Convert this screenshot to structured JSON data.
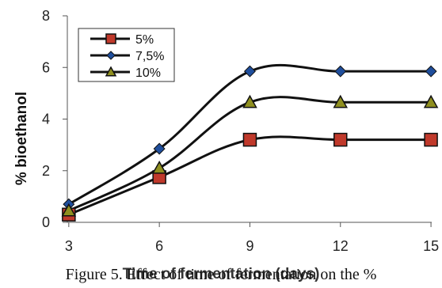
{
  "caption": {
    "text": "Figure 5. Effect of time of fermentation on the %",
    "overlay": "Time of fermentation (days)"
  },
  "chart_data": {
    "type": "line",
    "ylabel": "% bioethanol",
    "xlabel": "Time of fermentation (days)",
    "x": [
      3,
      6,
      9,
      12,
      15
    ],
    "xticks": [
      "3",
      "6",
      "9",
      "12",
      "15"
    ],
    "yticks": [
      "0",
      "2",
      "4",
      "6",
      "8"
    ],
    "ylim": [
      0,
      8
    ],
    "grid": false,
    "legend_position": "top-left",
    "series": [
      {
        "name": "5%",
        "values": [
          0.3,
          1.75,
          3.2,
          3.2,
          3.2
        ],
        "marker": "square",
        "marker_color": "#c0392b"
      },
      {
        "name": "7,5%",
        "values": [
          0.7,
          2.85,
          5.85,
          5.85,
          5.85
        ],
        "marker": "diamond",
        "marker_color": "#1f4e9c"
      },
      {
        "name": "10%",
        "values": [
          0.45,
          2.1,
          4.65,
          4.65,
          4.65
        ],
        "marker": "triangle",
        "marker_color": "#8f8f1f"
      }
    ]
  }
}
